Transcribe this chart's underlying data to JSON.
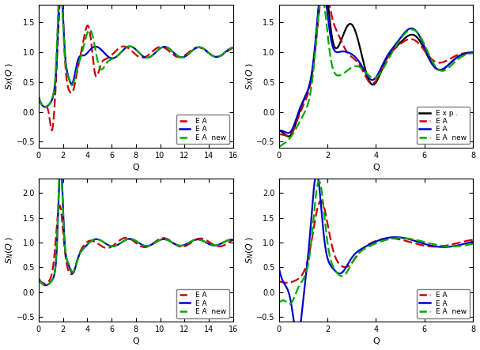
{
  "panels": {
    "top_left": {
      "xlabel": "Q",
      "ylabel": "S_X(Q )",
      "xlim": [
        0,
        16
      ],
      "ylim": [
        -0.6,
        1.8
      ],
      "xticks": [
        0,
        2,
        4,
        6,
        8,
        10,
        12,
        14,
        16
      ],
      "yticks": [
        -0.5,
        0.0,
        0.5,
        1.0,
        1.5
      ],
      "legend": [
        {
          "label": "E A",
          "color": "#cc0000",
          "ls": "dashed",
          "lw": 1.8
        },
        {
          "label": "E A",
          "color": "#0000cc",
          "ls": "solid",
          "lw": 1.8
        },
        {
          "label": "E A  new",
          "color": "#00aa00",
          "ls": "dashed",
          "lw": 1.8
        }
      ]
    },
    "top_right": {
      "xlabel": "Q",
      "ylabel": "S_X(Q )",
      "xlim": [
        0,
        8
      ],
      "ylim": [
        -0.6,
        1.8
      ],
      "xticks": [
        0,
        2,
        4,
        6,
        8
      ],
      "yticks": [
        -0.5,
        0.0,
        0.5,
        1.0,
        1.5
      ],
      "legend": [
        {
          "label": "E x p .",
          "color": "#000000",
          "ls": "solid",
          "lw": 1.8
        },
        {
          "label": "E A",
          "color": "#cc0000",
          "ls": "dashed",
          "lw": 1.8
        },
        {
          "label": "E A",
          "color": "#0000cc",
          "ls": "solid",
          "lw": 1.8
        },
        {
          "label": "E A  new",
          "color": "#00aa00",
          "ls": "dashed",
          "lw": 1.8
        }
      ]
    },
    "bot_left": {
      "xlabel": "Q",
      "ylabel": "S_N(Q )",
      "xlim": [
        0,
        16
      ],
      "ylim": [
        -0.6,
        2.3
      ],
      "xticks": [
        0,
        2,
        4,
        6,
        8,
        10,
        12,
        14,
        16
      ],
      "yticks": [
        -0.5,
        0.0,
        0.5,
        1.0,
        1.5,
        2.0
      ],
      "legend": [
        {
          "label": "E A",
          "color": "#cc0000",
          "ls": "dashed",
          "lw": 1.8
        },
        {
          "label": "E A",
          "color": "#0000cc",
          "ls": "solid",
          "lw": 1.8
        },
        {
          "label": "E A  new",
          "color": "#00aa00",
          "ls": "dashed",
          "lw": 1.8
        }
      ]
    },
    "bot_right": {
      "xlabel": "Q",
      "ylabel": "S_N(Q )",
      "xlim": [
        0,
        8
      ],
      "ylim": [
        -0.6,
        2.3
      ],
      "xticks": [
        0,
        2,
        4,
        6,
        8
      ],
      "yticks": [
        -0.5,
        0.0,
        0.5,
        1.0,
        1.5,
        2.0
      ],
      "legend": [
        {
          "label": "E A",
          "color": "#cc0000",
          "ls": "dashed",
          "lw": 1.8
        },
        {
          "label": "E A",
          "color": "#0000cc",
          "ls": "solid",
          "lw": 1.8
        },
        {
          "label": "E A  new",
          "color": "#00aa00",
          "ls": "dashed",
          "lw": 1.8
        }
      ]
    }
  }
}
